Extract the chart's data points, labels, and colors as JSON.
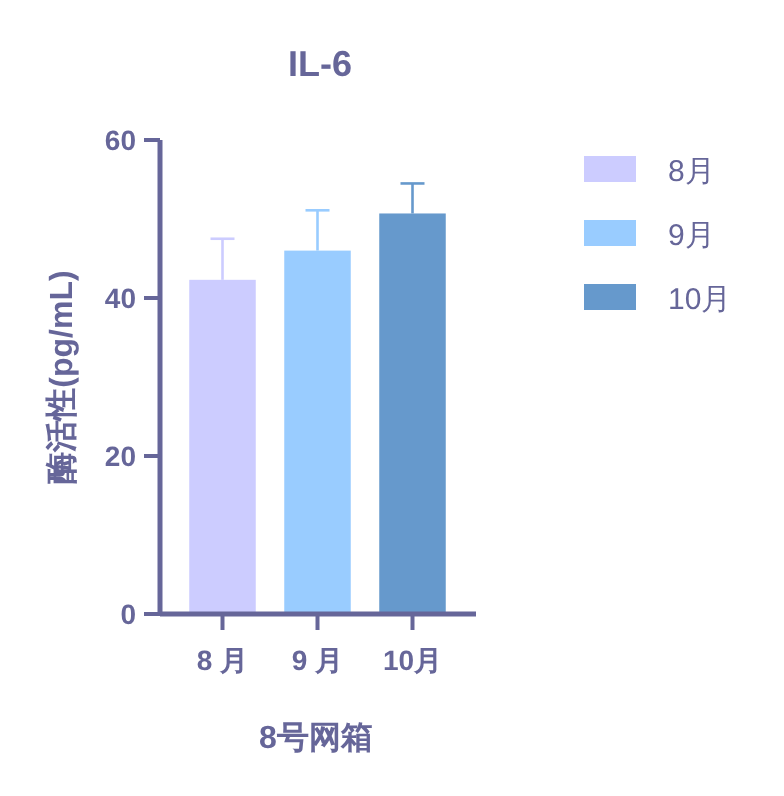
{
  "chart_data": {
    "type": "bar",
    "title": "IL-6",
    "xlabel": "8号网箱",
    "ylabel": "酶活性(pg/mL)",
    "categories": [
      "8 月",
      "9 月",
      "10月"
    ],
    "series": [
      {
        "name": "8月",
        "color": "#ccccff",
        "values": [
          42.3,
          null,
          null
        ],
        "errors": [
          [
            42.3,
            47.5
          ],
          null,
          null
        ]
      },
      {
        "name": "9月",
        "color": "#99ccff",
        "values": [
          null,
          46.0,
          null
        ],
        "errors": [
          null,
          [
            46.0,
            51.1
          ],
          null
        ]
      },
      {
        "name": "10月",
        "color": "#6699cc",
        "values": [
          null,
          null,
          50.7
        ],
        "errors": [
          null,
          null,
          [
            50.7,
            54.5
          ]
        ]
      }
    ],
    "ylim": [
      0,
      60
    ],
    "yticks": [
      0,
      20,
      40,
      60
    ],
    "grid": false,
    "legend": "right"
  }
}
